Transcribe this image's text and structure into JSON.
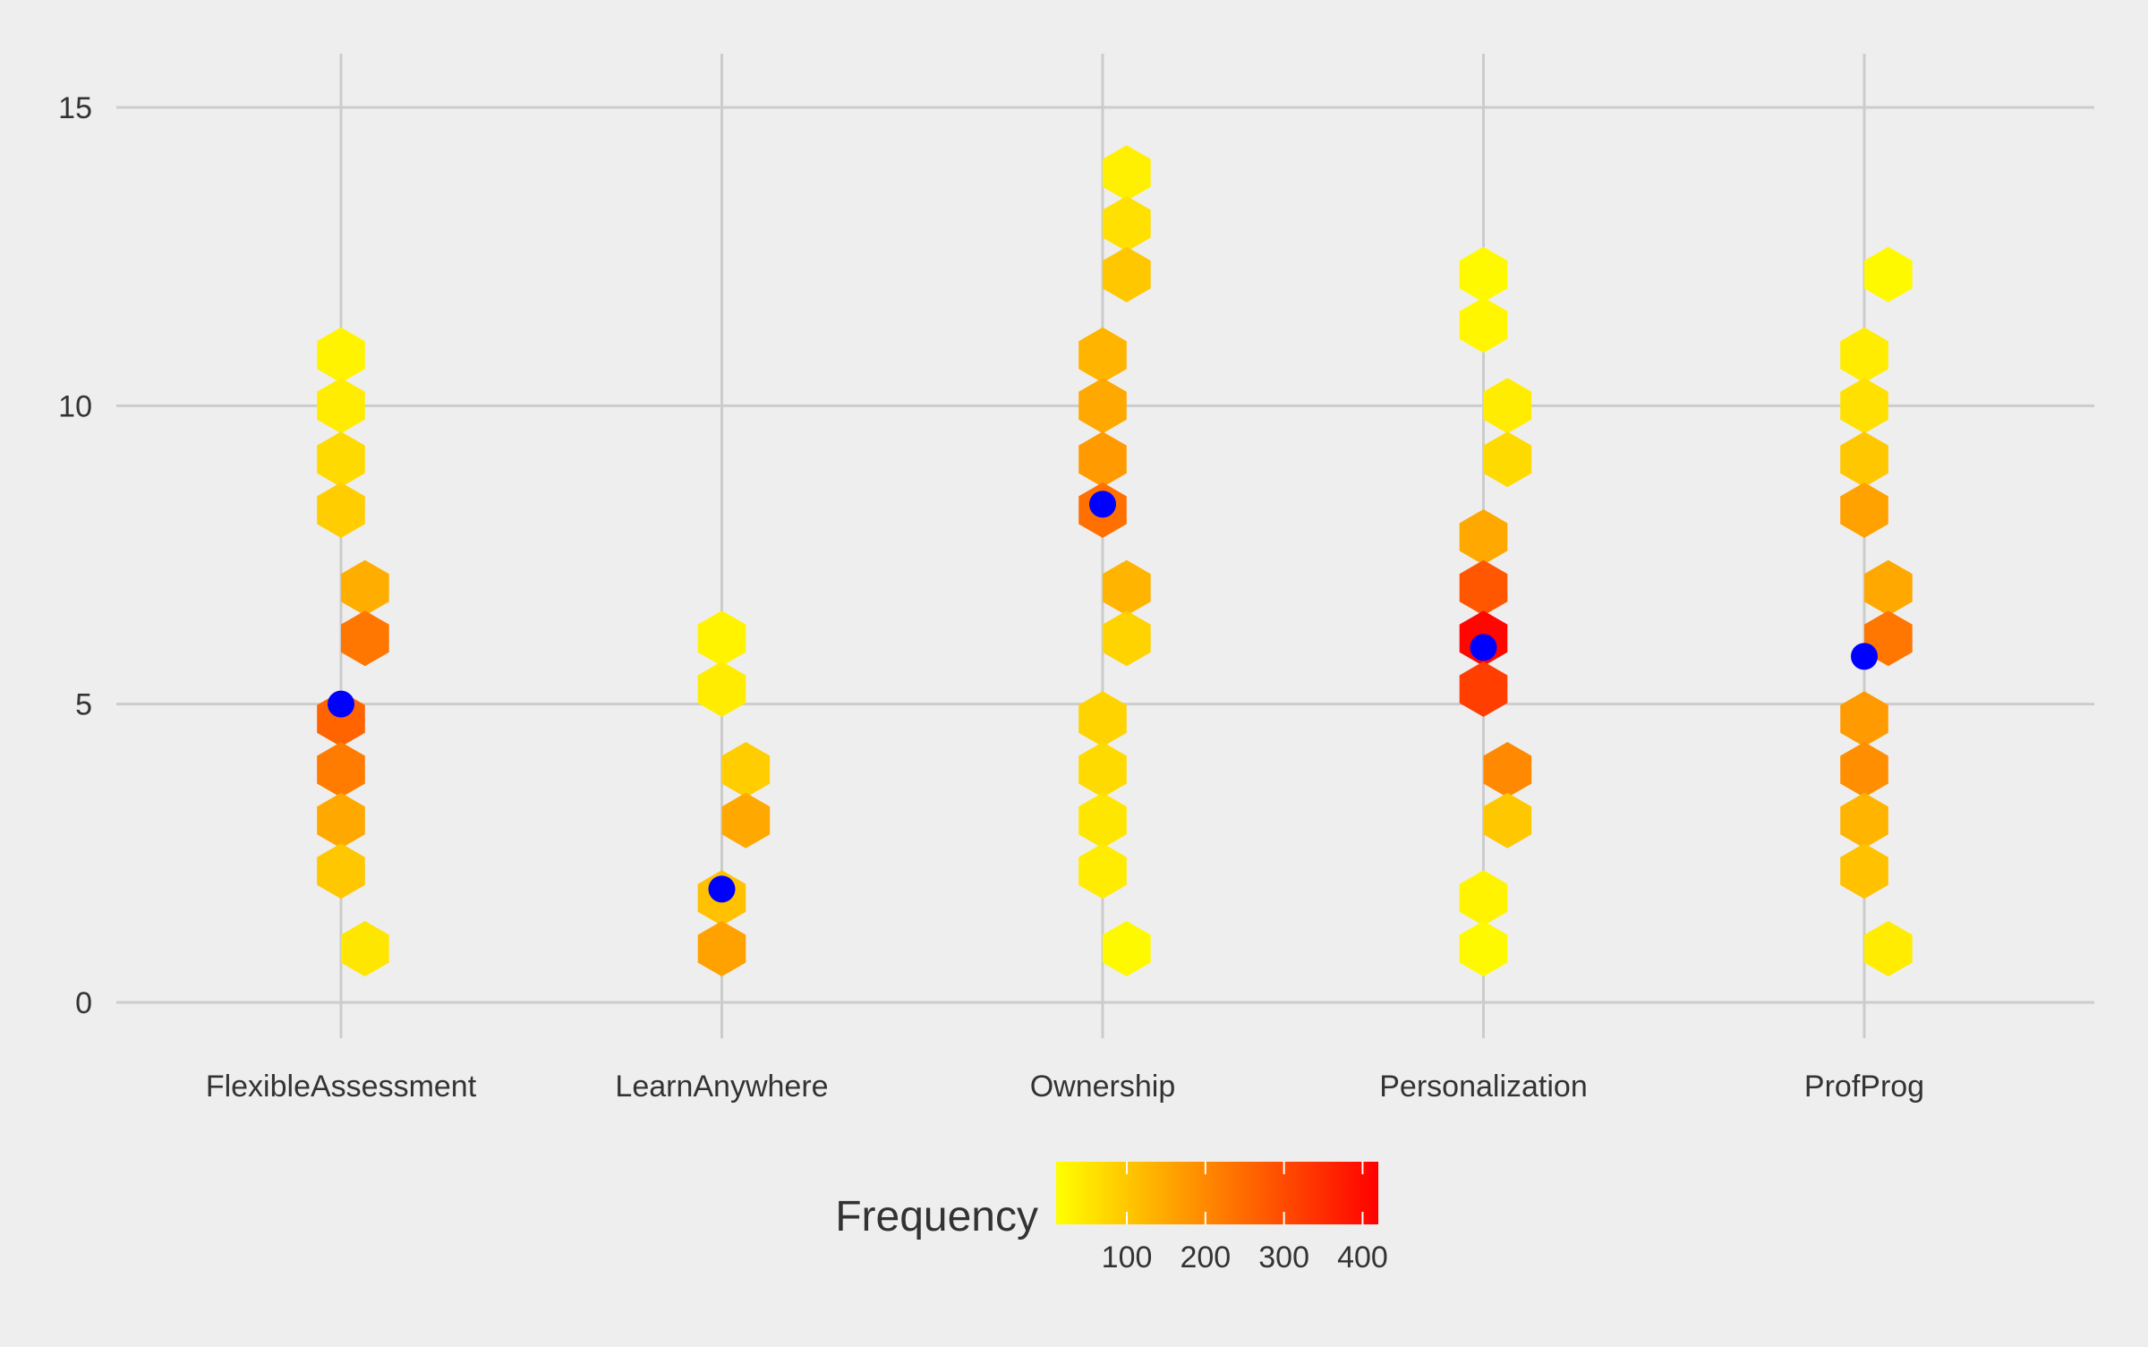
{
  "chart_data": {
    "type": "hexbin",
    "title": "",
    "xlabel": "",
    "ylabel": "",
    "categories": [
      "FlexibleAssessment",
      "LearnAnywhere",
      "Ownership",
      "Personalization",
      "ProfProg"
    ],
    "y_ticks": [
      0,
      5,
      10,
      15
    ],
    "ylim": [
      -0.6,
      15.9
    ],
    "grid": true,
    "background": "#eeeeee",
    "grid_color": "#cccccc",
    "mean_point_color": "#0000ff",
    "legend": {
      "title": "Frequency",
      "position": "bottom",
      "ticks": [
        100,
        200,
        300,
        400
      ],
      "range": [
        10,
        420
      ],
      "color_low": "#ffff00",
      "color_high": "#ff0000"
    },
    "hexbins": [
      {
        "category": "FlexibleAssessment",
        "offset": 0,
        "y": 10.85,
        "count": 30
      },
      {
        "category": "FlexibleAssessment",
        "offset": 0,
        "y": 10.0,
        "count": 40
      },
      {
        "category": "FlexibleAssessment",
        "offset": 0,
        "y": 9.1,
        "count": 70
      },
      {
        "category": "FlexibleAssessment",
        "offset": 0,
        "y": 8.25,
        "count": 90
      },
      {
        "category": "FlexibleAssessment",
        "offset": 1,
        "y": 6.95,
        "count": 140
      },
      {
        "category": "FlexibleAssessment",
        "offset": 1,
        "y": 6.1,
        "count": 230
      },
      {
        "category": "FlexibleAssessment",
        "offset": 0,
        "y": 4.75,
        "count": 260
      },
      {
        "category": "FlexibleAssessment",
        "offset": 0,
        "y": 3.9,
        "count": 220
      },
      {
        "category": "FlexibleAssessment",
        "offset": 0,
        "y": 3.05,
        "count": 150
      },
      {
        "category": "FlexibleAssessment",
        "offset": 0,
        "y": 2.2,
        "count": 100
      },
      {
        "category": "FlexibleAssessment",
        "offset": 1,
        "y": 0.9,
        "count": 50
      },
      {
        "category": "LearnAnywhere",
        "offset": 0,
        "y": 6.1,
        "count": 30
      },
      {
        "category": "LearnAnywhere",
        "offset": 0,
        "y": 5.25,
        "count": 40
      },
      {
        "category": "LearnAnywhere",
        "offset": 1,
        "y": 3.9,
        "count": 90
      },
      {
        "category": "LearnAnywhere",
        "offset": 1,
        "y": 3.05,
        "count": 150
      },
      {
        "category": "LearnAnywhere",
        "offset": 0,
        "y": 1.75,
        "count": 110
      },
      {
        "category": "LearnAnywhere",
        "offset": 0,
        "y": 0.9,
        "count": 160
      },
      {
        "category": "Ownership",
        "offset": 1,
        "y": 13.9,
        "count": 35
      },
      {
        "category": "Ownership",
        "offset": 1,
        "y": 13.05,
        "count": 60
      },
      {
        "category": "Ownership",
        "offset": 1,
        "y": 12.2,
        "count": 100
      },
      {
        "category": "Ownership",
        "offset": 0,
        "y": 10.85,
        "count": 130
      },
      {
        "category": "Ownership",
        "offset": 0,
        "y": 10.0,
        "count": 150
      },
      {
        "category": "Ownership",
        "offset": 0,
        "y": 9.1,
        "count": 170
      },
      {
        "category": "Ownership",
        "offset": 0,
        "y": 8.25,
        "count": 240
      },
      {
        "category": "Ownership",
        "offset": 1,
        "y": 6.95,
        "count": 130
      },
      {
        "category": "Ownership",
        "offset": 1,
        "y": 6.1,
        "count": 80
      },
      {
        "category": "Ownership",
        "offset": 0,
        "y": 4.75,
        "count": 80
      },
      {
        "category": "Ownership",
        "offset": 0,
        "y": 3.9,
        "count": 70
      },
      {
        "category": "Ownership",
        "offset": 0,
        "y": 3.05,
        "count": 50
      },
      {
        "category": "Ownership",
        "offset": 0,
        "y": 2.2,
        "count": 40
      },
      {
        "category": "Ownership",
        "offset": 1,
        "y": 0.9,
        "count": 20
      },
      {
        "category": "Personalization",
        "offset": 0,
        "y": 12.2,
        "count": 20
      },
      {
        "category": "Personalization",
        "offset": 0,
        "y": 11.35,
        "count": 25
      },
      {
        "category": "Personalization",
        "offset": 1,
        "y": 10.0,
        "count": 40
      },
      {
        "category": "Personalization",
        "offset": 1,
        "y": 9.1,
        "count": 70
      },
      {
        "category": "Personalization",
        "offset": 0,
        "y": 7.8,
        "count": 150
      },
      {
        "category": "Personalization",
        "offset": 0,
        "y": 6.95,
        "count": 280
      },
      {
        "category": "Personalization",
        "offset": 0,
        "y": 6.1,
        "count": 410
      },
      {
        "category": "Personalization",
        "offset": 0,
        "y": 5.25,
        "count": 320
      },
      {
        "category": "Personalization",
        "offset": 1,
        "y": 3.9,
        "count": 200
      },
      {
        "category": "Personalization",
        "offset": 1,
        "y": 3.05,
        "count": 100
      },
      {
        "category": "Personalization",
        "offset": 0,
        "y": 1.75,
        "count": 30
      },
      {
        "category": "Personalization",
        "offset": 0,
        "y": 0.9,
        "count": 20
      },
      {
        "category": "ProfProg",
        "offset": 1,
        "y": 12.2,
        "count": 20
      },
      {
        "category": "ProfProg",
        "offset": 0,
        "y": 10.85,
        "count": 40
      },
      {
        "category": "ProfProg",
        "offset": 0,
        "y": 10.0,
        "count": 60
      },
      {
        "category": "ProfProg",
        "offset": 0,
        "y": 9.1,
        "count": 100
      },
      {
        "category": "ProfProg",
        "offset": 0,
        "y": 8.25,
        "count": 160
      },
      {
        "category": "ProfProg",
        "offset": 1,
        "y": 6.95,
        "count": 150
      },
      {
        "category": "ProfProg",
        "offset": 1,
        "y": 6.1,
        "count": 230
      },
      {
        "category": "ProfProg",
        "offset": 0,
        "y": 4.75,
        "count": 170
      },
      {
        "category": "ProfProg",
        "offset": 0,
        "y": 3.9,
        "count": 190
      },
      {
        "category": "ProfProg",
        "offset": 0,
        "y": 3.05,
        "count": 130
      },
      {
        "category": "ProfProg",
        "offset": 0,
        "y": 2.2,
        "count": 110
      },
      {
        "category": "ProfProg",
        "offset": 1,
        "y": 0.9,
        "count": 40
      }
    ],
    "means": [
      {
        "category": "FlexibleAssessment",
        "y": 5.0
      },
      {
        "category": "LearnAnywhere",
        "y": 1.9
      },
      {
        "category": "Ownership",
        "y": 8.35
      },
      {
        "category": "Personalization",
        "y": 5.95
      },
      {
        "category": "ProfProg",
        "y": 5.8
      }
    ]
  }
}
